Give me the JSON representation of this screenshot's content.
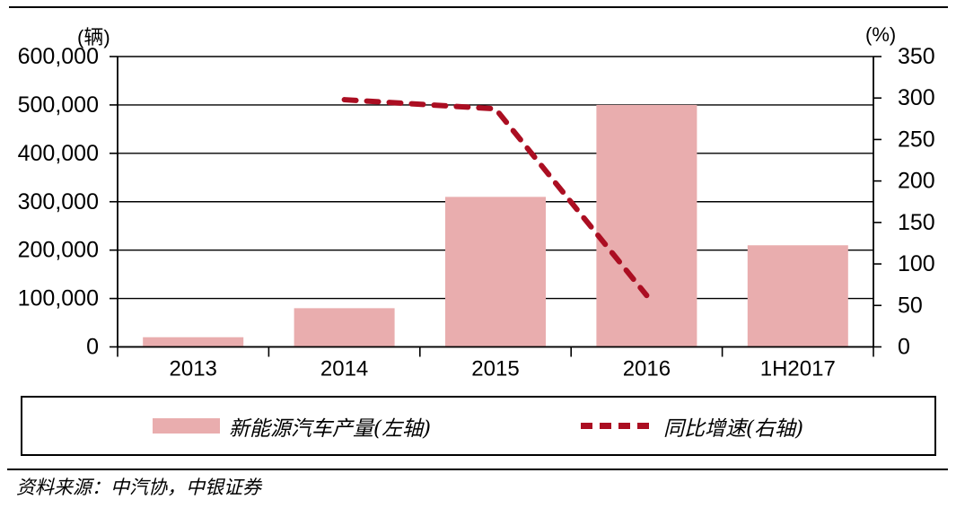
{
  "units": {
    "left": "(辆)",
    "right": "(%)"
  },
  "chart_data": {
    "type": "bar",
    "title": "",
    "categories": [
      "2013",
      "2014",
      "2015",
      "2016",
      "1H2017"
    ],
    "series": [
      {
        "name": "新能源汽车产量(左轴)",
        "type": "bar",
        "axis": "left",
        "values": [
          20000,
          80000,
          310000,
          500000,
          210000
        ]
      },
      {
        "name": "同比增速(右轴)",
        "type": "line",
        "axis": "right",
        "style": "dashed",
        "values": [
          null,
          298,
          287,
          62,
          null
        ]
      }
    ],
    "left_axis": {
      "label": "(辆)",
      "min": 0,
      "max": 600000,
      "step": 100000,
      "tick_labels": [
        "0",
        "100,000",
        "200,000",
        "300,000",
        "400,000",
        "500,000",
        "600,000"
      ]
    },
    "right_axis": {
      "label": "(%)",
      "min": 0,
      "max": 350,
      "step": 50,
      "tick_labels": [
        "0",
        "50",
        "100",
        "150",
        "200",
        "250",
        "300",
        "350"
      ]
    },
    "grid": true,
    "legend_position": "bottom",
    "colors": {
      "bar": "#E9ADAE",
      "line": "#AB0E22",
      "axis": "#000000"
    }
  },
  "legend": {
    "items": [
      {
        "label": "新能源汽车产量(左轴)",
        "swatch": "bar"
      },
      {
        "label": "同比增速(右轴)",
        "swatch": "dashed-line"
      }
    ]
  },
  "source_note": "资料来源：中汽协，中银证券"
}
